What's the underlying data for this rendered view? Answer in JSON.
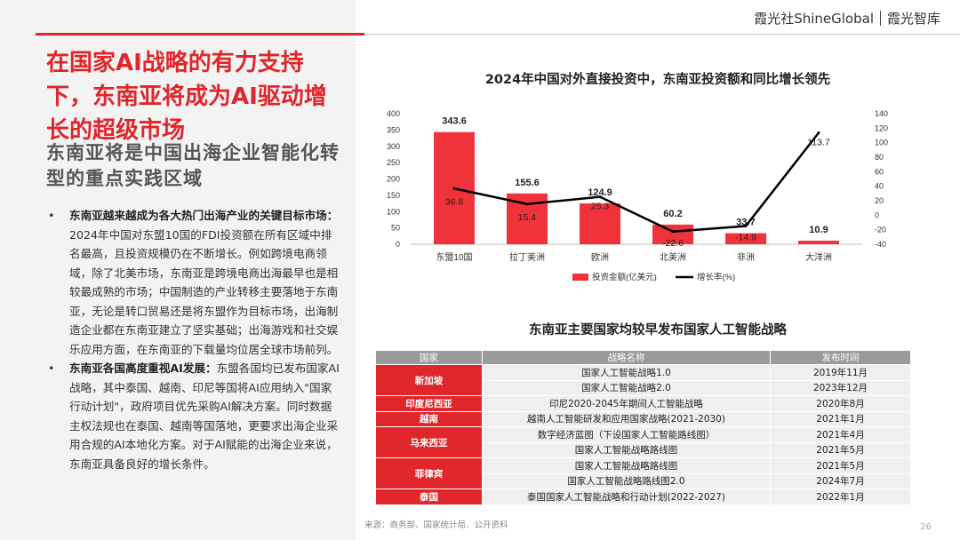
{
  "brand": {
    "name": "霞光社",
    "global": "ShineGlobal",
    "think_tank": "霞光智库"
  },
  "headline": "在国家AI战略的有力支持下，东南亚将成为AI驱动增长的超级市场",
  "subheadline": "东南亚将是中国出海企业智能化转型的重点实践区域",
  "bullets": [
    {
      "title": "东南亚越来越成为各大热门出海产业的关键目标市场：",
      "text": "2024年中国对东盟10国的FDI投资额在所有区域中排名最高，且投资规模仍在不断增长。例如跨境电商领域，除了北美市场，东南亚是跨境电商出海最早也是相较最成熟的市场；中国制造的产业转移主要落地于东南亚，无论是转口贸易还是将东盟作为目标市场，出海制造企业都在东南亚建立了坚实基础；出海游戏和社交娱乐应用方面，在东南亚的下载量均位居全球市场前列。"
    },
    {
      "title": "东南亚各国高度重视AI发展：",
      "text": "东盟各国均已发布国家AI战略，其中泰国、越南、印尼等国将AI应用纳入\"国家行动计划\"，政府项目优先采购AI解决方案。同时数据主权法规也在泰国、越南等国落地，更要求出海企业采用合规的AI本地化方案。对于AI赋能的出海企业来说，东南亚具备良好的增长条件。"
    }
  ],
  "chart_data": {
    "type": "bar",
    "title": "2024年中国对外直接投资中，东南亚投资额和同比增长领先",
    "categories": [
      "东盟10国",
      "拉丁美洲",
      "欧洲",
      "北美洲",
      "非洲",
      "大洋洲"
    ],
    "series": [
      {
        "name": "投资金额(亿美元)",
        "type": "bar",
        "axis": "left",
        "values": [
          343.6,
          155.6,
          124.9,
          60.2,
          33.7,
          10.9
        ]
      },
      {
        "name": "增长率(%)",
        "type": "line",
        "axis": "right",
        "values": [
          36.8,
          15.4,
          25.3,
          -22.6,
          -14.9,
          113.7
        ]
      }
    ],
    "ylim": [
      0,
      400
    ],
    "y_ticks": [
      0,
      50,
      100,
      150,
      200,
      250,
      300,
      350,
      400
    ],
    "y2lim": [
      -40,
      140
    ],
    "y2_ticks": [
      -40,
      -20,
      0,
      20,
      40,
      60,
      80,
      100,
      120,
      140
    ],
    "legend_position": "bottom",
    "colors": {
      "bar": "#f0333a",
      "line": "#000000"
    }
  },
  "table": {
    "title": "东南亚主要国家均较早发布国家人工智能战略",
    "headers": [
      "国家",
      "战略名称",
      "发布时间"
    ],
    "groups": [
      {
        "country": "新加坡",
        "rows": [
          [
            "国家人工智能战略1.0",
            "2019年11月"
          ],
          [
            "国家人工智能战略2.0",
            "2023年12月"
          ]
        ]
      },
      {
        "country": "印度尼西亚",
        "rows": [
          [
            "印尼2020-2045年期间人工智能战略",
            "2020年8月"
          ]
        ]
      },
      {
        "country": "越南",
        "rows": [
          [
            "越南人工智能研发和应用国家战略(2021-2030)",
            "2021年1月"
          ]
        ]
      },
      {
        "country": "马来西亚",
        "rows": [
          [
            "数字经济蓝图（下设国家人工智能路线图）",
            "2021年4月"
          ],
          [
            "国家人工智能战略路线图",
            "2021年5月"
          ]
        ]
      },
      {
        "country": "菲律宾",
        "rows": [
          [
            "国家人工智能战略路线图",
            "2021年5月"
          ],
          [
            "国家人工智能战略路线图2.0",
            "2024年7月"
          ]
        ]
      },
      {
        "country": "泰国",
        "rows": [
          [
            "泰国国家人工智能战略和行动计划(2022-2027)",
            "2022年1月"
          ]
        ]
      }
    ]
  },
  "source": "来源：商务部、国家统计局、公开资料",
  "page_number": "26"
}
